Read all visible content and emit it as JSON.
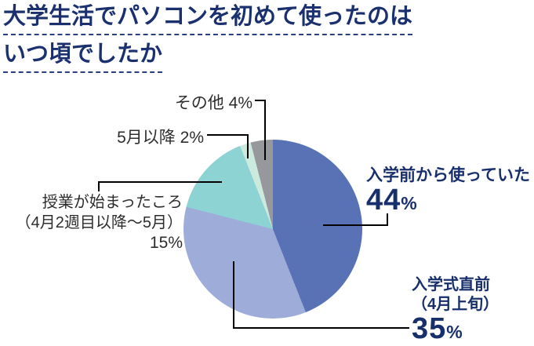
{
  "title": {
    "line1": "大学生活でパソコンを初めて使ったのは",
    "line2": "いつ頃でしたか"
  },
  "chart_data": {
    "type": "pie",
    "title": "大学生活でパソコンを初めて使ったのはいつ頃でしたか",
    "start_angle_deg": 0,
    "direction": "clockwise",
    "slices": [
      {
        "label": "入学前から使っていた",
        "value_pct": 44,
        "color": "#5872b5"
      },
      {
        "label": "入学式直前（4月上旬）",
        "value_pct": 35,
        "color": "#9dacd9"
      },
      {
        "label": "授業が始まったころ（4月2週目以降～5月）",
        "value_pct": 15,
        "color": "#8dd3d3"
      },
      {
        "label": "5月以降",
        "value_pct": 2,
        "color": "#cbe9dc"
      },
      {
        "label": "その他",
        "value_pct": 4,
        "color": "#97989b"
      }
    ]
  },
  "labels": {
    "other": {
      "text": "その他 4%"
    },
    "after_may": {
      "text": "5月以降 2%"
    },
    "classes_started": {
      "line1": "授業が始まったころ",
      "line2": "（4月2週目以降～5月）",
      "pct": "15%"
    },
    "before_entering": {
      "text": "入学前から使っていた",
      "pct_number": "44",
      "pct_sign": "%"
    },
    "just_before_ceremony": {
      "line1": "入学式直前",
      "line2": "（4月上旬）",
      "pct_number": "35",
      "pct_sign": "%"
    }
  },
  "colors": {
    "title_navy": "#1b306e",
    "label_navy": "#17306c",
    "label_black": "#2d2d2d",
    "line_navy": "#1f3d7f",
    "line_black": "#3a3a3a",
    "background": "#ffffff"
  }
}
